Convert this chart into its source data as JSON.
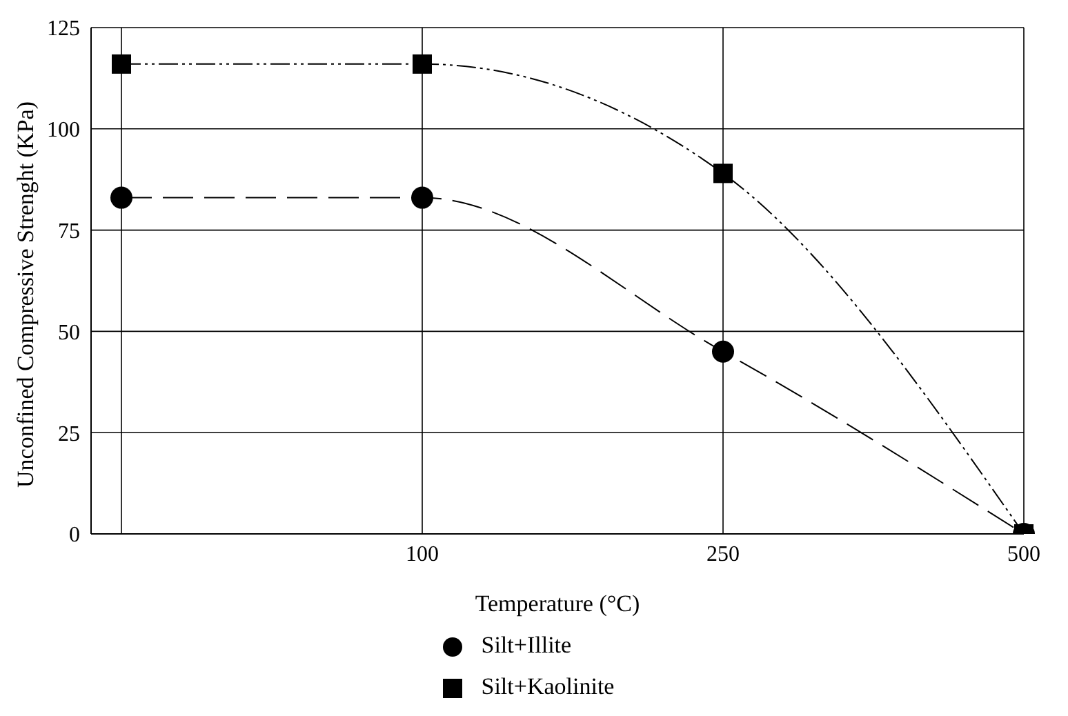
{
  "chart_data": {
    "type": "line",
    "xlabel": "Temperature (°C)",
    "ylabel": "Unconfined Compressive Strenght (KPa)",
    "categories": [
      null,
      "100",
      "250",
      "500"
    ],
    "series": [
      {
        "name": "Silt+Illite",
        "color": "#000000",
        "values": [
          83,
          83,
          45,
          0
        ],
        "marker": "circle",
        "line_style": "dashed"
      },
      {
        "name": "Silt+Kaolinite",
        "color": "#000000",
        "values": [
          116,
          116,
          89,
          0
        ],
        "marker": "square",
        "line_style": "dotted"
      }
    ],
    "ylim": [
      0,
      125
    ],
    "yticks": [
      0,
      25,
      50,
      75,
      100,
      125
    ],
    "grid": true,
    "legend": "bottom"
  }
}
